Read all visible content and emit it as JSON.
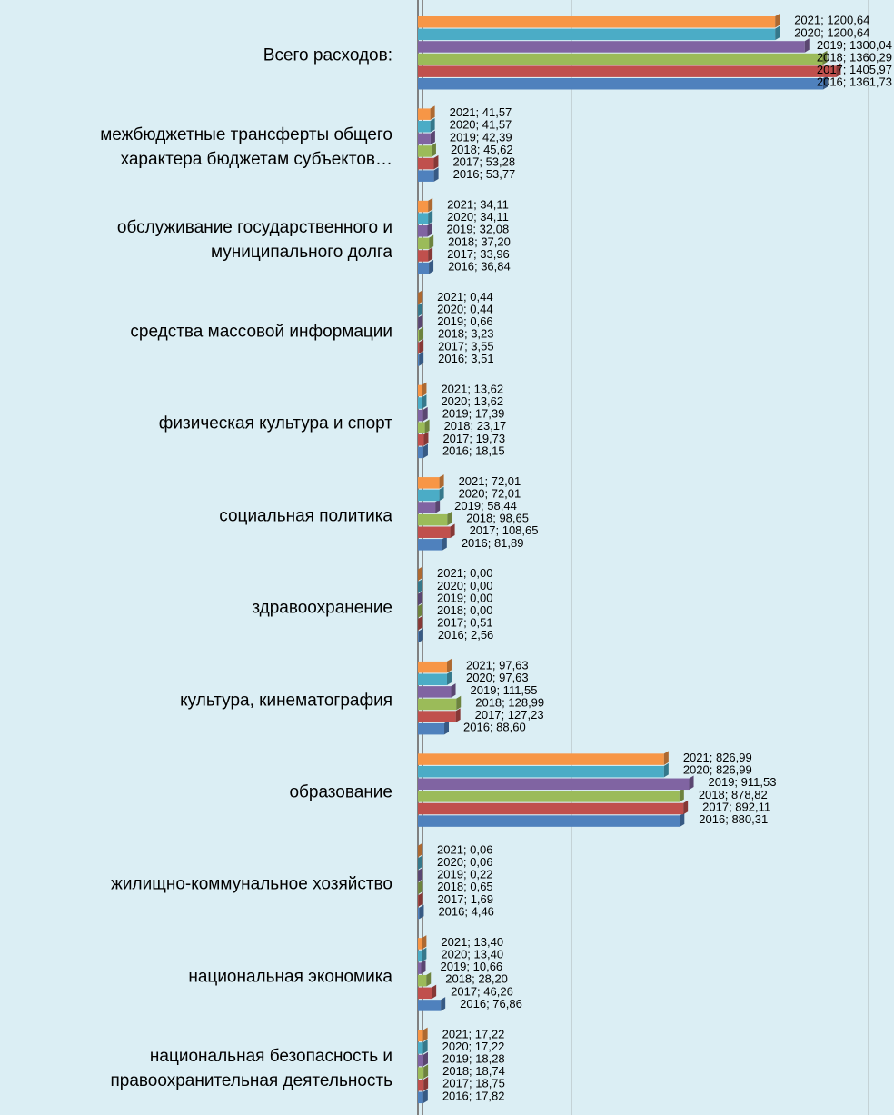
{
  "chart_data": {
    "type": "bar",
    "orientation": "horizontal",
    "categories": [
      "Всего расходов:",
      "межбюджетные трансферты общего характера бюджетам субъектов…",
      "обслуживание государственного и муниципального долга",
      "средства массовой информации",
      "физическая культура и спорт",
      "социальная политика",
      "здравоохранение",
      "культура, кинематография",
      "образование",
      "жилищно-коммунальное хозяйство",
      "национальная экономика",
      "национальная безопасность и правоохранительная деятельность"
    ],
    "series": [
      {
        "name": "2016",
        "color": "#4f81bd",
        "values": [
          1361.73,
          53.77,
          36.84,
          3.51,
          18.15,
          81.89,
          2.56,
          88.6,
          880.31,
          4.46,
          76.86,
          17.82
        ],
        "value_labels": [
          "2016; 1361,73",
          "2016; 53,77",
          "2016; 36,84",
          "2016; 3,51",
          "2016; 18,15",
          "2016; 81,89",
          "2016; 2,56",
          "2016; 88,60",
          "2016; 880,31",
          "2016; 4,46",
          "2016; 76,86",
          "2016; 17,82"
        ]
      },
      {
        "name": "2017",
        "color": "#c0504d",
        "values": [
          1405.97,
          53.28,
          33.96,
          3.55,
          19.73,
          108.65,
          0.51,
          127.23,
          892.11,
          1.69,
          46.26,
          18.75
        ],
        "value_labels": [
          "2017; 1405,97",
          "2017; 53,28",
          "2017; 33,96",
          "2017; 3,55",
          "2017; 19,73",
          "2017; 108,65",
          "2017; 0,51",
          "2017; 127,23",
          "2017; 892,11",
          "2017; 1,69",
          "2017; 46,26",
          "2017; 18,75"
        ]
      },
      {
        "name": "2018",
        "color": "#9bbb59",
        "values": [
          1360.29,
          45.62,
          37.2,
          3.23,
          23.17,
          98.65,
          0.0,
          128.99,
          878.82,
          0.65,
          28.2,
          18.74
        ],
        "value_labels": [
          "2018; 1360,29",
          "2018; 45,62",
          "2018; 37,20",
          "2018; 3,23",
          "2018; 23,17",
          "2018; 98,65",
          "2018; 0,00",
          "2018; 128,99",
          "2018; 878,82",
          "2018; 0,65",
          "2018; 28,20",
          "2018; 18,74"
        ]
      },
      {
        "name": "2019",
        "color": "#8064a2",
        "values": [
          1300.04,
          42.39,
          32.08,
          0.66,
          17.39,
          58.44,
          0.0,
          111.55,
          911.53,
          0.22,
          10.66,
          18.28
        ],
        "value_labels": [
          "2019; 1300,04",
          "2019; 42,39",
          "2019; 32,08",
          "2019; 0,66",
          "2019; 17,39",
          "2019; 58,44",
          "2019; 0,00",
          "2019; 111,55",
          "2019; 911,53",
          "2019; 0,22",
          "2019; 10,66",
          "2019; 18,28"
        ]
      },
      {
        "name": "2020",
        "color": "#4bacc6",
        "values": [
          1200.64,
          41.57,
          34.11,
          0.44,
          13.62,
          72.01,
          0.0,
          97.63,
          826.99,
          0.06,
          13.4,
          17.22
        ],
        "value_labels": [
          "2020; 1200,64",
          "2020; 41,57",
          "2020; 34,11",
          "2020; 0,44",
          "2020; 13,62",
          "2020; 72,01",
          "2020; 0,00",
          "2020; 97,63",
          "2020; 826,99",
          "2020; 0,06",
          "2020; 13,40",
          "2020; 17,22"
        ]
      },
      {
        "name": "2021",
        "color": "#f79646",
        "values": [
          1200.64,
          41.57,
          34.11,
          0.44,
          13.62,
          72.01,
          0.0,
          97.63,
          826.99,
          0.06,
          13.4,
          17.22
        ],
        "value_labels": [
          "2021; 1200,64",
          "2021; 41,57",
          "2021; 34,11",
          "2021; 0,44",
          "2021; 13,62",
          "2021; 72,01",
          "2021; 0,00",
          "2021; 97,63",
          "2021; 826,99",
          "2021; 0,06",
          "2021; 13,40",
          "2021; 17,22"
        ]
      }
    ],
    "xlim": [
      0,
      1600
    ],
    "xticks": [
      0,
      500,
      1000,
      1500
    ],
    "grid": true
  }
}
